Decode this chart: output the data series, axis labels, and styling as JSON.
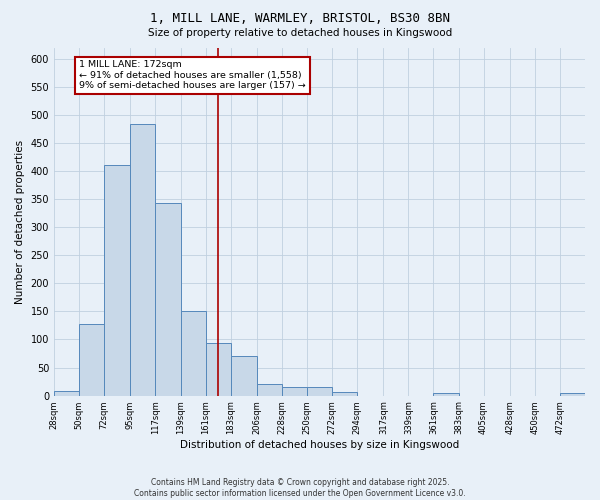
{
  "title1": "1, MILL LANE, WARMLEY, BRISTOL, BS30 8BN",
  "title2": "Size of property relative to detached houses in Kingswood",
  "xlabel": "Distribution of detached houses by size in Kingswood",
  "ylabel": "Number of detached properties",
  "bin_edges": [
    28,
    50,
    72,
    95,
    117,
    139,
    161,
    183,
    206,
    228,
    250,
    272,
    294,
    317,
    339,
    361,
    383,
    405,
    428,
    450,
    472
  ],
  "bar_heights": [
    8,
    128,
    410,
    483,
    343,
    150,
    93,
    70,
    20,
    15,
    15,
    6,
    0,
    0,
    0,
    4,
    0,
    0,
    0,
    0,
    4
  ],
  "bar_color": "#c8d8e8",
  "bar_edge_color": "#5588bb",
  "property_line_x": 172,
  "property_line_color": "#aa0000",
  "annotation_text": "1 MILL LANE: 172sqm\n← 91% of detached houses are smaller (1,558)\n9% of semi-detached houses are larger (157) →",
  "annotation_box_color": "white",
  "annotation_box_edge_color": "#aa0000",
  "ylim": [
    0,
    620
  ],
  "yticks": [
    0,
    50,
    100,
    150,
    200,
    250,
    300,
    350,
    400,
    450,
    500,
    550,
    600
  ],
  "grid_color": "#c0d0e0",
  "background_color": "#e8f0f8",
  "footer_text": "Contains HM Land Registry data © Crown copyright and database right 2025.\nContains public sector information licensed under the Open Government Licence v3.0.",
  "tick_labels": [
    "28sqm",
    "50sqm",
    "72sqm",
    "95sqm",
    "117sqm",
    "139sqm",
    "161sqm",
    "183sqm",
    "206sqm",
    "228sqm",
    "250sqm",
    "272sqm",
    "294sqm",
    "317sqm",
    "339sqm",
    "361sqm",
    "383sqm",
    "405sqm",
    "428sqm",
    "450sqm",
    "472sqm"
  ]
}
